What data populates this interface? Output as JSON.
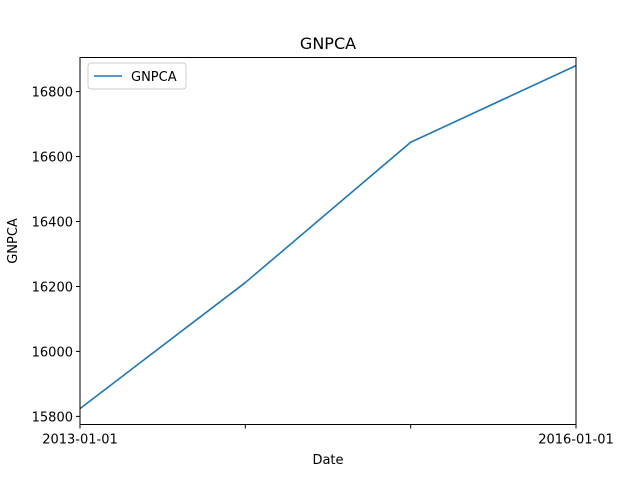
{
  "chart_data": {
    "type": "line",
    "title": "GNPCA",
    "xlabel": "Date",
    "ylabel": "GNPCA",
    "x": [
      "2013-01-01",
      "2014-01-01",
      "2015-01-01",
      "2016-01-01"
    ],
    "x_tick_labels": [
      "2013-01-01",
      "",
      "",
      "2016-01-01"
    ],
    "y_ticks": [
      15800,
      16000,
      16200,
      16400,
      16600,
      16800
    ],
    "xlim": [
      "2013-01-01",
      "2016-01-01"
    ],
    "ylim": [
      15775,
      16905
    ],
    "grid": false,
    "legend_position": "top-left",
    "series": [
      {
        "name": "GNPCA",
        "color": "#1f77b4",
        "values": [
          15824,
          16212,
          16644,
          16880
        ]
      }
    ]
  }
}
